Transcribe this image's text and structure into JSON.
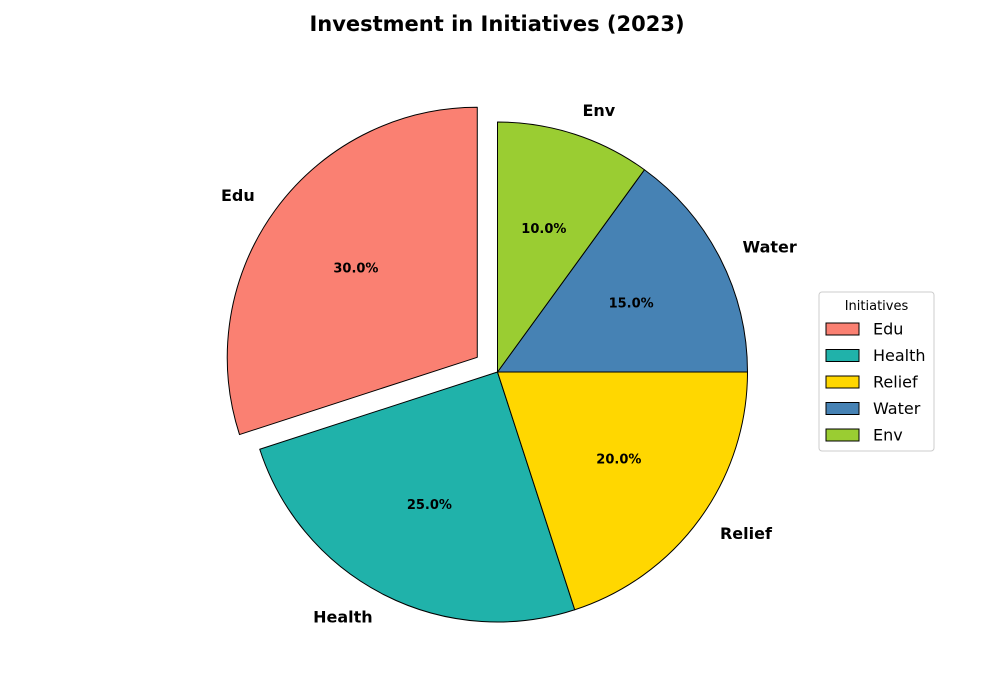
{
  "chart_data": {
    "type": "pie",
    "title": "Investment in Initiatives (2023)",
    "start_angle_deg": 90,
    "direction": "counterclockwise",
    "slices": [
      {
        "label": "Edu",
        "value": 30.0,
        "pct_label": "30.0%",
        "color": "#FA8072",
        "exploded": true
      },
      {
        "label": "Health",
        "value": 25.0,
        "pct_label": "25.0%",
        "color": "#20B2AA",
        "exploded": false
      },
      {
        "label": "Relief",
        "value": 20.0,
        "pct_label": "20.0%",
        "color": "#FFD700",
        "exploded": false
      },
      {
        "label": "Water",
        "value": 15.0,
        "pct_label": "15.0%",
        "color": "#4682B4",
        "exploded": false
      },
      {
        "label": "Env",
        "value": 10.0,
        "pct_label": "10.0%",
        "color": "#9ACD32",
        "exploded": false
      }
    ],
    "legend": {
      "title": "Initiatives",
      "placement": "center-right",
      "entries": [
        "Edu",
        "Health",
        "Relief",
        "Water",
        "Env"
      ]
    },
    "edge_color": "#000000"
  }
}
